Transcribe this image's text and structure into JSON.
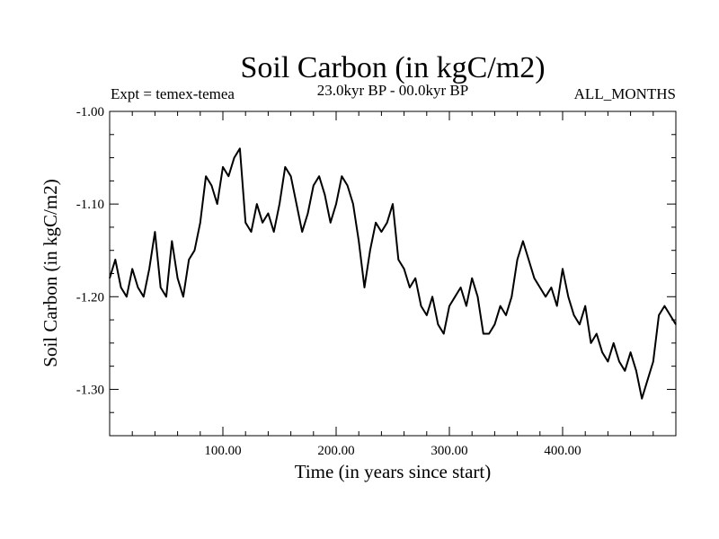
{
  "chart_data": {
    "type": "line",
    "title": "Soil Carbon (in kgC/m2)",
    "subtitle_left": "Expt = temex-temea",
    "subtitle_center": "23.0kyr BP - 00.0kyr BP",
    "subtitle_right": "ALL_MONTHS",
    "xlabel": "Time (in years since start)",
    "ylabel": "Soil Carbon (in kgC/m2)",
    "xlim": [
      0,
      500
    ],
    "ylim": [
      -1.35,
      -1.0
    ],
    "xticks": [
      100,
      200,
      300,
      400
    ],
    "xtick_labels": [
      "100.00",
      "200.00",
      "300.00",
      "400.00"
    ],
    "yticks": [
      -1.0,
      -1.1,
      -1.2,
      -1.3
    ],
    "ytick_labels": [
      "-1.00",
      "-1.10",
      "-1.20",
      "-1.30"
    ],
    "series": [
      {
        "name": "Soil Carbon",
        "x": [
          0,
          5,
          10,
          15,
          20,
          25,
          30,
          35,
          40,
          45,
          50,
          55,
          60,
          65,
          70,
          75,
          80,
          85,
          90,
          95,
          100,
          105,
          110,
          115,
          120,
          125,
          130,
          135,
          140,
          145,
          150,
          155,
          160,
          165,
          170,
          175,
          180,
          185,
          190,
          195,
          200,
          205,
          210,
          215,
          220,
          225,
          230,
          235,
          240,
          245,
          250,
          255,
          260,
          265,
          270,
          275,
          280,
          285,
          290,
          295,
          300,
          305,
          310,
          315,
          320,
          325,
          330,
          335,
          340,
          345,
          350,
          355,
          360,
          365,
          370,
          375,
          380,
          385,
          390,
          395,
          400,
          405,
          410,
          415,
          420,
          425,
          430,
          435,
          440,
          445,
          450,
          455,
          460,
          465,
          470,
          475,
          480,
          485,
          490,
          495,
          500
        ],
        "y": [
          -1.18,
          -1.16,
          -1.19,
          -1.2,
          -1.17,
          -1.19,
          -1.2,
          -1.17,
          -1.13,
          -1.19,
          -1.2,
          -1.14,
          -1.18,
          -1.2,
          -1.16,
          -1.15,
          -1.12,
          -1.07,
          -1.08,
          -1.1,
          -1.06,
          -1.07,
          -1.05,
          -1.04,
          -1.12,
          -1.13,
          -1.1,
          -1.12,
          -1.11,
          -1.13,
          -1.1,
          -1.06,
          -1.07,
          -1.1,
          -1.13,
          -1.11,
          -1.08,
          -1.07,
          -1.09,
          -1.12,
          -1.1,
          -1.07,
          -1.08,
          -1.1,
          -1.14,
          -1.19,
          -1.15,
          -1.12,
          -1.13,
          -1.12,
          -1.1,
          -1.16,
          -1.17,
          -1.19,
          -1.18,
          -1.21,
          -1.22,
          -1.2,
          -1.23,
          -1.24,
          -1.21,
          -1.2,
          -1.19,
          -1.21,
          -1.18,
          -1.2,
          -1.24,
          -1.24,
          -1.23,
          -1.21,
          -1.22,
          -1.2,
          -1.16,
          -1.14,
          -1.16,
          -1.18,
          -1.19,
          -1.2,
          -1.19,
          -1.21,
          -1.17,
          -1.2,
          -1.22,
          -1.23,
          -1.21,
          -1.25,
          -1.24,
          -1.26,
          -1.27,
          -1.25,
          -1.27,
          -1.28,
          -1.26,
          -1.28,
          -1.31,
          -1.29,
          -1.27,
          -1.22,
          -1.21,
          -1.22,
          -1.23
        ]
      }
    ]
  }
}
